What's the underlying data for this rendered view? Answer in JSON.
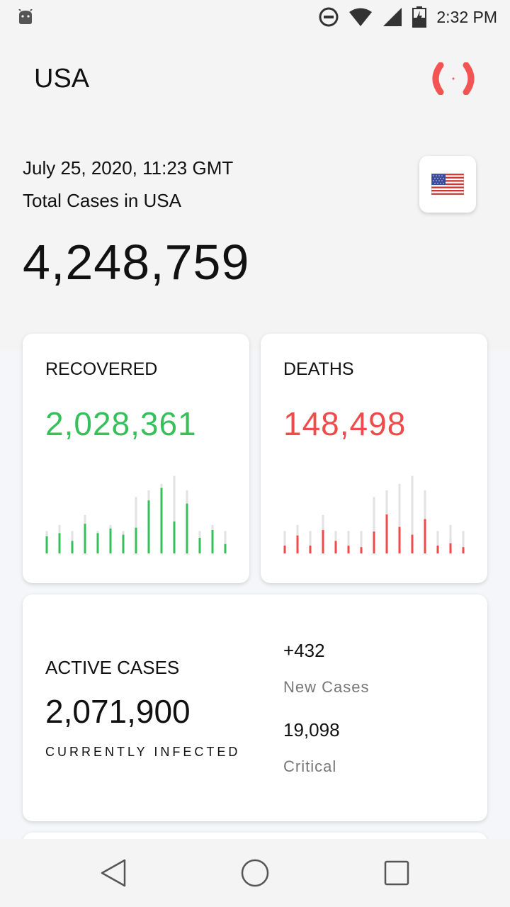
{
  "status_bar": {
    "time": "2:32 PM",
    "icons": [
      "android-icon",
      "do-not-disturb-icon",
      "wifi-icon",
      "signal-icon",
      "battery-charging-icon"
    ]
  },
  "header": {
    "title": "USA",
    "live_icon": "live-pulse-icon"
  },
  "summary": {
    "date": "July 25, 2020, 11:23 GMT",
    "label": "Total Cases in USA",
    "total": "4,248,759",
    "flag_icon": "us-flag-icon"
  },
  "recovered": {
    "label": "RECOVERED",
    "value": "2,028,361",
    "color": "#35c05a",
    "bars": [
      0.22,
      0.26,
      0.16,
      0.38,
      0.26,
      0.32,
      0.24,
      0.33,
      0.68,
      0.84,
      0.41,
      0.64,
      0.2,
      0.3,
      0.12
    ],
    "tracks": [
      0.34,
      0.43,
      0.34,
      0.58,
      0.34,
      0.43,
      0.34,
      0.85,
      0.95,
      1.05,
      1.17,
      0.95,
      0.34,
      0.43,
      0.34
    ]
  },
  "deaths": {
    "label": "DEATHS",
    "value": "148,498",
    "color": "#ef4b4b",
    "bars": [
      0.1,
      0.23,
      0.1,
      0.3,
      0.16,
      0.1,
      0.08,
      0.28,
      0.5,
      0.34,
      0.24,
      0.44,
      0.1,
      0.13,
      0.08
    ],
    "tracks": [
      0.34,
      0.43,
      0.34,
      0.58,
      0.34,
      0.34,
      0.34,
      0.85,
      0.95,
      1.05,
      1.17,
      0.95,
      0.34,
      0.43,
      0.34
    ]
  },
  "active": {
    "label": "ACTIVE CASES",
    "value": "2,071,900",
    "sub": "CURRENTLY INFECTED",
    "new_cases_value": "+432",
    "new_cases_label": "New Cases",
    "critical_value": "19,098",
    "critical_label": "Critical"
  },
  "nav": {
    "icons": [
      "back-icon",
      "home-icon",
      "recents-icon"
    ]
  }
}
